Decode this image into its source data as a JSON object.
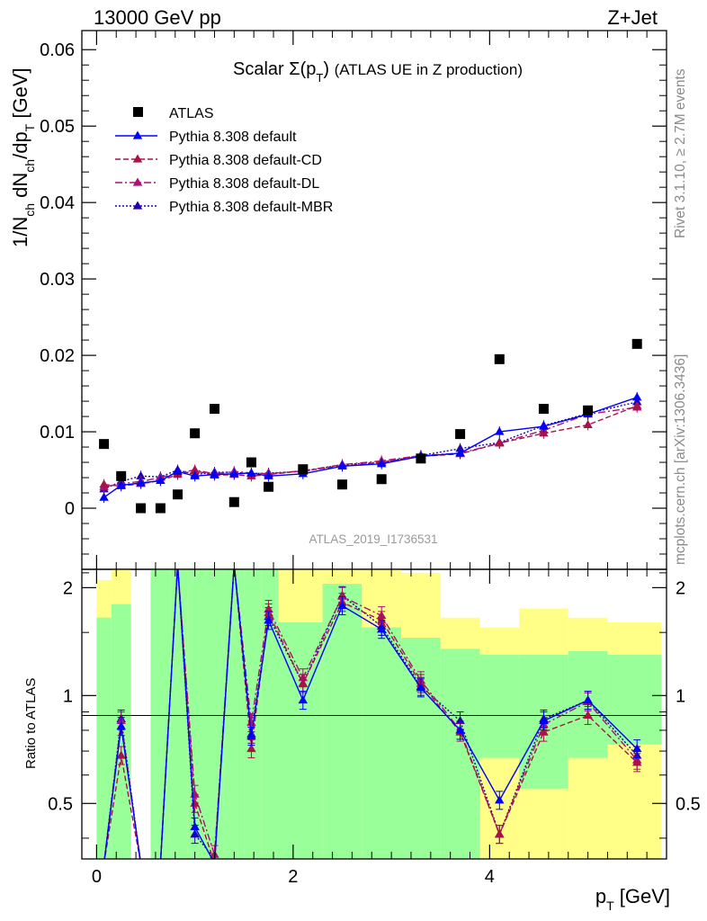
{
  "header": {
    "energy_label": "13000 GeV pp",
    "process_label": "Z+Jet"
  },
  "side_labels": {
    "rivet": "Rivet 3.1.10, ≥ 2.7M events",
    "mcplots": "mcplots.cern.ch [arXiv:1306.3436]"
  },
  "chart_data": {
    "type": "scatter",
    "title": "Scalar Σ(p_T) (ATLAS UE in Z production)",
    "analysis_id": "ATLAS_2019_I1736531",
    "xlabel": "p_T [GeV]",
    "ylabel": "1/N_ch dN_ch/dp_T [GeV]",
    "ratio_ylabel": "Ratio to ATLAS",
    "xlim": [
      -0.15,
      5.8
    ],
    "ylim": [
      -0.008,
      0.0625
    ],
    "ratio_ylim": [
      0.35,
      2.25
    ],
    "x_ticks": [
      "0",
      "2",
      "4"
    ],
    "y_ticks": [
      "0",
      "0.01",
      "0.02",
      "0.03",
      "0.04",
      "0.05",
      "0.06"
    ],
    "ratio_ticks": [
      "0.5",
      "1",
      "2"
    ],
    "legend_position": "top-left",
    "x": [
      0.075,
      0.25,
      0.45,
      0.65,
      0.825,
      1.0,
      1.2,
      1.4,
      1.575,
      1.75,
      2.1,
      2.5,
      2.9,
      3.3,
      3.7,
      4.1,
      4.55,
      5.0,
      5.5
    ],
    "atlas": {
      "name": "ATLAS",
      "values": [
        0.0084,
        0.0042,
        0.0,
        0.0,
        0.0018,
        0.0098,
        0.013,
        0.0008,
        0.006,
        0.0028,
        0.0051,
        0.0031,
        0.0038,
        0.0065,
        0.0097,
        0.0195,
        0.013,
        0.0128,
        0.0215
      ]
    },
    "series": [
      {
        "name": "Pythia 8.308 default",
        "color": "#0000ff",
        "dash": "",
        "values": [
          0.0014,
          0.003,
          0.0033,
          0.0036,
          0.0048,
          0.0042,
          0.0044,
          0.0045,
          0.0046,
          0.0042,
          0.0045,
          0.0055,
          0.0058,
          0.0068,
          0.0072,
          0.01,
          0.0107,
          0.0123,
          0.0145
        ],
        "ratio": [
          0.17,
          0.82,
          0.0,
          0.0,
          2.7,
          0.43,
          0.34,
          5.6,
          0.77,
          1.62,
          0.97,
          1.78,
          1.53,
          1.05,
          0.8,
          0.51,
          0.85,
          0.97,
          0.71
        ]
      },
      {
        "name": "Pythia 8.308 default-CD",
        "color": "#aa1144",
        "dash": "6,3",
        "values": [
          0.0031,
          0.0029,
          0.0032,
          0.0036,
          0.0044,
          0.0049,
          0.0043,
          0.0044,
          0.0042,
          0.0044,
          0.0049,
          0.0055,
          0.006,
          0.0068,
          0.0071,
          0.0085,
          0.0098,
          0.0109,
          0.0134
        ],
        "ratio": [
          0.2,
          0.68,
          0.0,
          0.0,
          2.7,
          0.5,
          0.33,
          5.6,
          0.71,
          1.7,
          1.08,
          1.82,
          1.62,
          1.08,
          0.79,
          0.41,
          0.79,
          0.88,
          0.65
        ]
      },
      {
        "name": "Pythia 8.308 default-DL",
        "color": "#aa1177",
        "dash": "8,3,2,3",
        "values": [
          0.0028,
          0.0032,
          0.0035,
          0.004,
          0.0046,
          0.005,
          0.0045,
          0.0048,
          0.0046,
          0.0045,
          0.0049,
          0.0057,
          0.0062,
          0.0069,
          0.0072,
          0.0085,
          0.0102,
          0.0123,
          0.0132
        ],
        "ratio": [
          0.2,
          0.85,
          0.0,
          0.0,
          2.7,
          0.53,
          0.36,
          5.6,
          0.84,
          1.74,
          1.12,
          1.89,
          1.67,
          1.1,
          0.8,
          0.41,
          0.83,
          0.96,
          0.66
        ]
      },
      {
        "name": "Pythia 8.308 default-MBR",
        "color": "#2200aa",
        "dash": "2,2",
        "values": [
          0.0025,
          0.0035,
          0.0042,
          0.0041,
          0.005,
          0.0044,
          0.0047,
          0.0047,
          0.0045,
          0.0046,
          0.0048,
          0.0057,
          0.006,
          0.0069,
          0.0078,
          0.0086,
          0.0108,
          0.0124,
          0.0139
        ],
        "ratio": [
          0.2,
          0.86,
          0.0,
          0.0,
          2.7,
          0.41,
          0.35,
          5.6,
          0.78,
          1.66,
          1.08,
          1.9,
          1.56,
          1.06,
          0.85,
          0.41,
          0.86,
          0.97,
          0.68
        ]
      }
    ],
    "ratio_bands": {
      "edges": [
        0.0,
        0.15,
        0.35,
        0.55,
        0.75,
        0.925,
        1.1,
        1.3,
        1.5,
        1.675,
        1.85,
        2.3,
        2.7,
        3.1,
        3.5,
        3.9,
        4.3,
        4.8,
        5.2,
        5.75
      ],
      "green": [
        [
          0.3,
          1.65
        ],
        [
          0.3,
          1.8
        ],
        [
          3.0,
          3.0
        ],
        [
          0.3,
          3.0
        ],
        [
          0.3,
          3.0
        ],
        [
          0.3,
          3.0
        ],
        [
          0.3,
          3.0
        ],
        [
          0.3,
          3.0
        ],
        [
          0.3,
          3.0
        ],
        [
          0.3,
          3.0
        ],
        [
          0.3,
          1.6
        ],
        [
          0.3,
          2.05
        ],
        [
          0.3,
          1.55
        ],
        [
          0.3,
          1.45
        ],
        [
          0.3,
          1.35
        ],
        [
          0.67,
          1.3
        ],
        [
          0.55,
          1.3
        ],
        [
          0.67,
          1.33
        ],
        [
          0.73,
          1.3
        ]
      ],
      "yellow": [
        [
          0.3,
          2.1
        ],
        [
          0.3,
          2.6
        ],
        [
          3.0,
          3.0
        ],
        [
          0.3,
          3.0
        ],
        [
          0.3,
          3.0
        ],
        [
          0.3,
          2.2
        ],
        [
          0.3,
          2.5
        ],
        [
          0.3,
          2.5
        ],
        [
          0.3,
          2.2
        ],
        [
          0.3,
          2.4
        ],
        [
          0.3,
          2.3
        ],
        [
          0.3,
          2.7
        ],
        [
          0.3,
          2.25
        ],
        [
          0.3,
          2.2
        ],
        [
          0.3,
          1.65
        ],
        [
          0.3,
          1.55
        ],
        [
          0.3,
          1.75
        ],
        [
          0.3,
          1.65
        ],
        [
          0.3,
          1.6
        ]
      ]
    }
  }
}
